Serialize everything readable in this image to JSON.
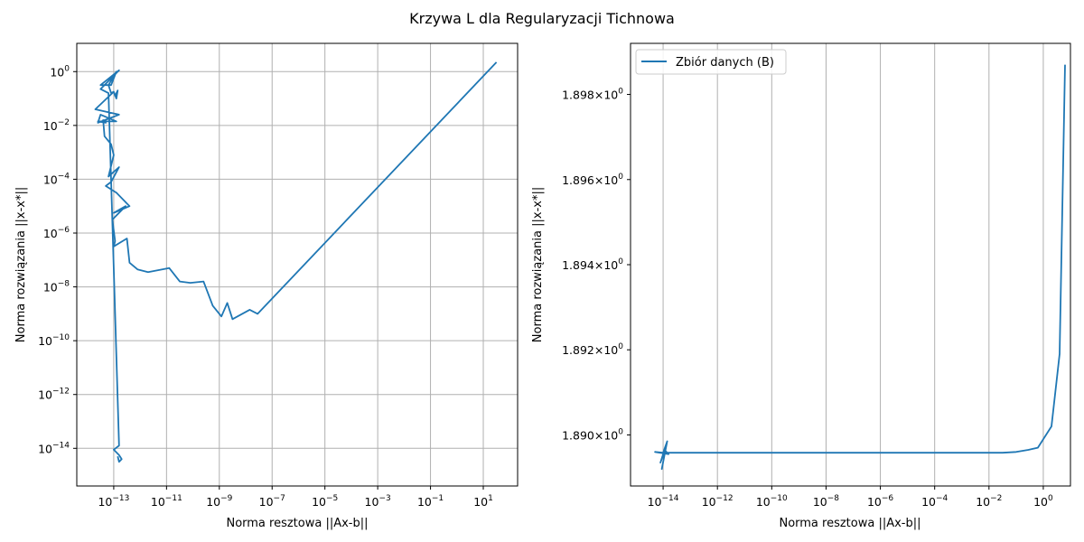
{
  "figure": {
    "suptitle": "Krzywa L dla Regularyzacji Tichnowa"
  },
  "chart_data": [
    {
      "type": "line",
      "xlabel": "Norma resztowa ||Ax-b||",
      "ylabel": "Norma rozwiązania ||x-x*||",
      "xscale": "log",
      "yscale": "log",
      "grid": true,
      "xlim_log10": [
        -14.4,
        2.3
      ],
      "ylim_log10": [
        -15.4,
        1.05
      ],
      "x_ticks": [
        {
          "base": "10",
          "exp": "−13",
          "log10": -13
        },
        {
          "base": "10",
          "exp": "−11",
          "log10": -11
        },
        {
          "base": "10",
          "exp": "−9",
          "log10": -9
        },
        {
          "base": "10",
          "exp": "−7",
          "log10": -7
        },
        {
          "base": "10",
          "exp": "−5",
          "log10": -5
        },
        {
          "base": "10",
          "exp": "−3",
          "log10": -3
        },
        {
          "base": "10",
          "exp": "−1",
          "log10": -1
        },
        {
          "base": "10",
          "exp": "1",
          "log10": 1
        }
      ],
      "y_ticks": [
        {
          "base": "10",
          "exp": "0",
          "log10": 0
        },
        {
          "base": "10",
          "exp": "−2",
          "log10": -2
        },
        {
          "base": "10",
          "exp": "−4",
          "log10": -4
        },
        {
          "base": "10",
          "exp": "−6",
          "log10": -6
        },
        {
          "base": "10",
          "exp": "−8",
          "log10": -8
        },
        {
          "base": "10",
          "exp": "−10",
          "log10": -10
        },
        {
          "base": "10",
          "exp": "−12",
          "log10": -12
        },
        {
          "base": "10",
          "exp": "−14",
          "log10": -14
        }
      ],
      "color": "#1f77b4",
      "series": [
        {
          "log10_x": [
            1.5,
            -7.55,
            -7.85,
            -8.5,
            -8.7,
            -8.92,
            -9.25,
            -9.6,
            -10.1,
            -10.5,
            -10.9,
            -11.7,
            -12.1,
            -12.4,
            -12.5,
            -13.0,
            -12.95,
            -13.05,
            -12.55,
            -13.0,
            -12.4,
            -12.9,
            -13.3,
            -13.1,
            -12.8,
            -13.2,
            -13.0,
            -13.1,
            -13.35,
            -13.4,
            -13.3,
            -13.6,
            -12.9,
            -13.5,
            -13.6,
            -12.8,
            -13.7,
            -13.0,
            -12.9,
            -12.85,
            -12.95,
            -13.0,
            -13.1,
            -13.2,
            -12.9,
            -13.1,
            -13.5,
            -12.8,
            -13.5,
            -13.2,
            -12.8,
            -13.0,
            -12.8,
            -12.7,
            -12.8,
            -12.85
          ],
          "log10_y": [
            0.35,
            -9.0,
            -8.85,
            -9.2,
            -8.6,
            -9.1,
            -8.7,
            -7.8,
            -7.85,
            -7.8,
            -7.3,
            -7.45,
            -7.35,
            -7.1,
            -6.2,
            -6.5,
            -6.3,
            -5.5,
            -5.0,
            -5.25,
            -5.0,
            -4.5,
            -4.25,
            -4.1,
            -3.55,
            -3.9,
            -3.1,
            -2.7,
            -2.4,
            -1.8,
            -1.9,
            -1.85,
            -1.85,
            -1.6,
            -1.9,
            -1.6,
            -1.4,
            -0.75,
            -1.0,
            -0.7,
            -0.9,
            -0.75,
            -0.8,
            -0.5,
            0.0,
            -0.5,
            -0.5,
            0.05,
            -0.65,
            -0.8,
            -13.9,
            -14.05,
            -14.25,
            -14.4,
            -14.5,
            -14.3
          ]
        }
      ]
    },
    {
      "type": "line",
      "xlabel": "Norma resztowa ||Ax-b||",
      "ylabel": "Norma rozwiązania ||x-x*||",
      "xscale": "log",
      "yscale": "log",
      "grid": true,
      "legend": {
        "label": "Zbiór danych (B)",
        "placement": "upper-left"
      },
      "xlim_log10": [
        -15.2,
        1.0
      ],
      "ylim": [
        1.8888,
        1.8992
      ],
      "x_ticks": [
        {
          "base": "10",
          "exp": "−14",
          "log10": -14
        },
        {
          "base": "10",
          "exp": "−12",
          "log10": -12
        },
        {
          "base": "10",
          "exp": "−10",
          "log10": -10
        },
        {
          "base": "10",
          "exp": "−8",
          "log10": -8
        },
        {
          "base": "10",
          "exp": "−6",
          "log10": -6
        },
        {
          "base": "10",
          "exp": "−4",
          "log10": -4
        },
        {
          "base": "10",
          "exp": "−2",
          "log10": -2
        },
        {
          "base": "10",
          "exp": "0",
          "log10": 0
        }
      ],
      "y_ticks": [
        {
          "mant": "1.898",
          "base": "10",
          "exp": "0",
          "value": 1.898
        },
        {
          "mant": "1.896",
          "base": "10",
          "exp": "0",
          "value": 1.896
        },
        {
          "mant": "1.894",
          "base": "10",
          "exp": "0",
          "value": 1.894
        },
        {
          "mant": "1.892",
          "base": "10",
          "exp": "0",
          "value": 1.892
        },
        {
          "mant": "1.890",
          "base": "10",
          "exp": "0",
          "value": 1.89
        }
      ],
      "color": "#1f77b4",
      "series": [
        {
          "name": "Zbiór danych (B)",
          "log10_x": [
            0.8,
            0.6,
            0.3,
            -0.2,
            -0.55,
            -1.0,
            -1.5,
            -14.0,
            -13.85,
            -14.05,
            -13.9,
            -14.1,
            -13.95,
            -13.8,
            -14.3,
            -14.0
          ],
          "y": [
            1.8987,
            1.8919,
            1.8902,
            1.8897,
            1.88965,
            1.8896,
            1.88958,
            1.88958,
            1.88985,
            1.8892,
            1.8897,
            1.88935,
            1.88965,
            1.88955,
            1.8896,
            1.88958
          ]
        }
      ]
    }
  ]
}
